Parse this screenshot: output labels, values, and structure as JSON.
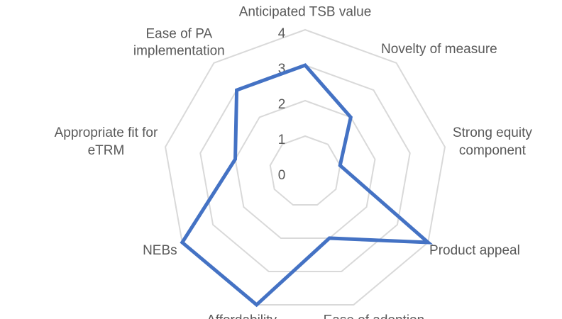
{
  "chart_data": {
    "type": "radar",
    "categories": [
      "Anticipated TSB value",
      "Novelty of measure",
      "Strong equity\ncomponent",
      "Product appeal",
      "Ease of adoption",
      "Affordability",
      "NEBs",
      "Appropriate fit for\neTRM",
      "Ease of PA\nimplementation"
    ],
    "values": [
      3,
      2,
      1,
      4,
      2,
      4,
      4,
      2,
      3
    ],
    "color": "#4472c4",
    "ylim": [
      0,
      4
    ],
    "yticks": [
      0,
      1,
      2,
      3,
      4
    ],
    "grid": true
  }
}
